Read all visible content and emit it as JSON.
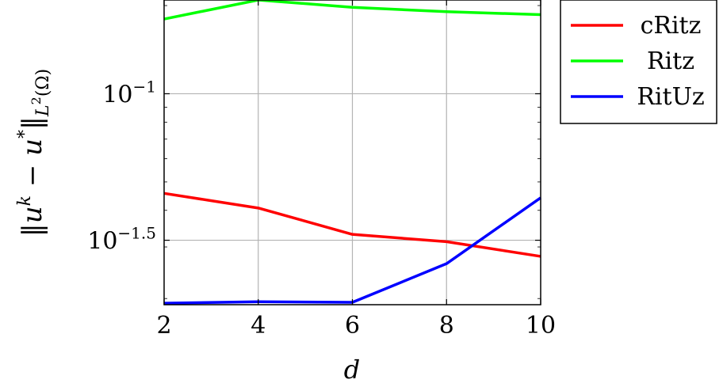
{
  "chart_data": {
    "type": "line",
    "x_label": "d",
    "y_label": "‖u^k − u*‖_{L²(Ω)}",
    "y_scale": "log10",
    "x_range": [
      2,
      10
    ],
    "y_range_log10": [
      -1.72,
      -0.68
    ],
    "grid": true,
    "legend_placement": "outside-right-top",
    "x_ticks": [
      {
        "value": 2,
        "label": "2"
      },
      {
        "value": 4,
        "label": "4"
      },
      {
        "value": 6,
        "label": "6"
      },
      {
        "value": 8,
        "label": "8"
      },
      {
        "value": 10,
        "label": "10"
      }
    ],
    "y_ticks": [
      {
        "log10": -1.0,
        "base": "10",
        "exp": "−1"
      },
      {
        "log10": -1.5,
        "base": "10",
        "exp": "−1.5"
      }
    ],
    "x": [
      2,
      4,
      6,
      8,
      10
    ],
    "series": [
      {
        "name": "cRitz",
        "color": "#ff0000",
        "log10_values": [
          -1.34,
          -1.39,
          -1.48,
          -1.505,
          -1.555
        ]
      },
      {
        "name": "Ritz",
        "color": "#00ff00",
        "log10_values": [
          -0.745,
          -0.68,
          -0.705,
          -0.72,
          -0.73
        ]
      },
      {
        "name": "RitUz",
        "color": "#0000ff",
        "log10_values": [
          -1.715,
          -1.71,
          -1.712,
          -1.58,
          -1.355
        ]
      }
    ]
  }
}
